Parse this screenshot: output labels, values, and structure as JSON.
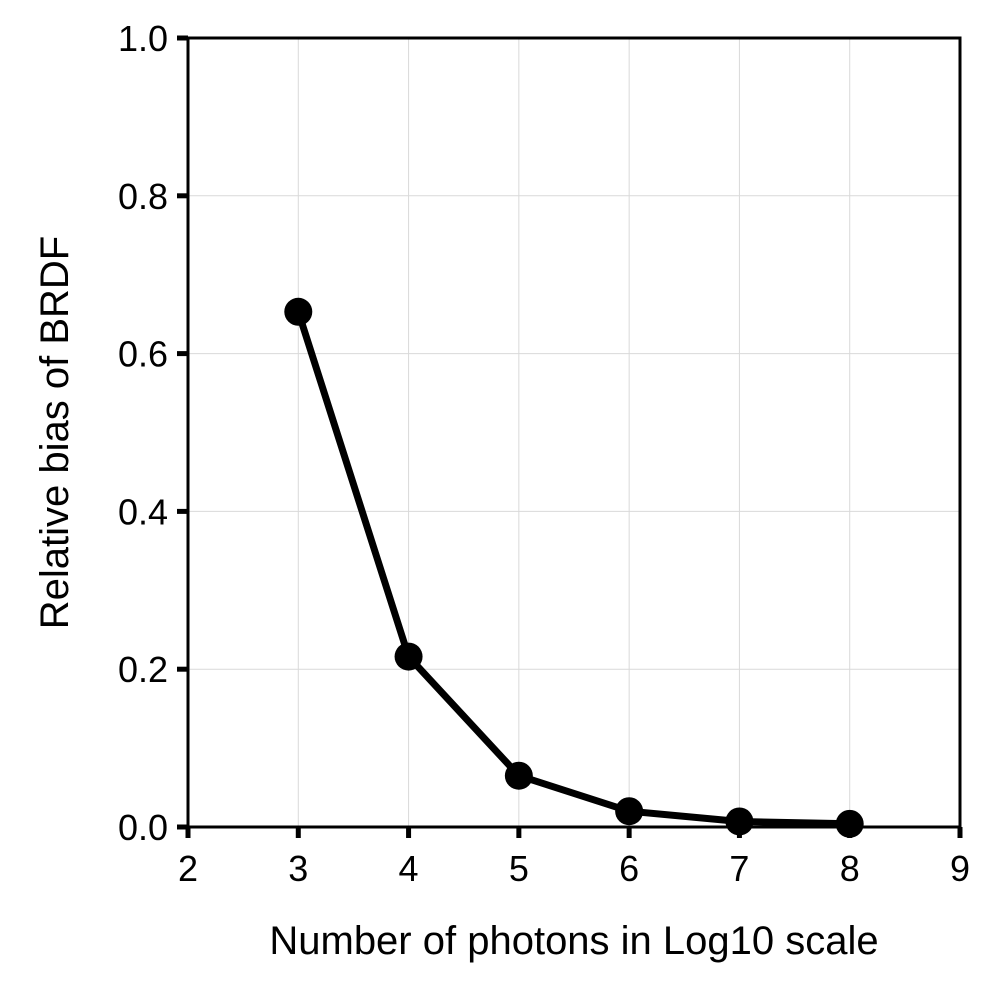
{
  "chart_data": {
    "type": "line",
    "title": "",
    "xlabel": "Number of photons in Log10 scale",
    "ylabel": "Relative bias of BRDF",
    "xlim": [
      2,
      9
    ],
    "ylim": [
      0.0,
      1.0
    ],
    "x_ticks": [
      "2",
      "3",
      "4",
      "5",
      "6",
      "7",
      "8",
      "9"
    ],
    "y_ticks": [
      "0.0",
      "0.2",
      "0.4",
      "0.6",
      "0.8",
      "1.0"
    ],
    "grid": true,
    "legend": "none",
    "series": [
      {
        "x": [
          3,
          4,
          5,
          6,
          7,
          8
        ],
        "y": [
          0.653,
          0.216,
          0.065,
          0.02,
          0.007,
          0.004
        ],
        "color": "#000000",
        "marker": "circle"
      }
    ]
  }
}
